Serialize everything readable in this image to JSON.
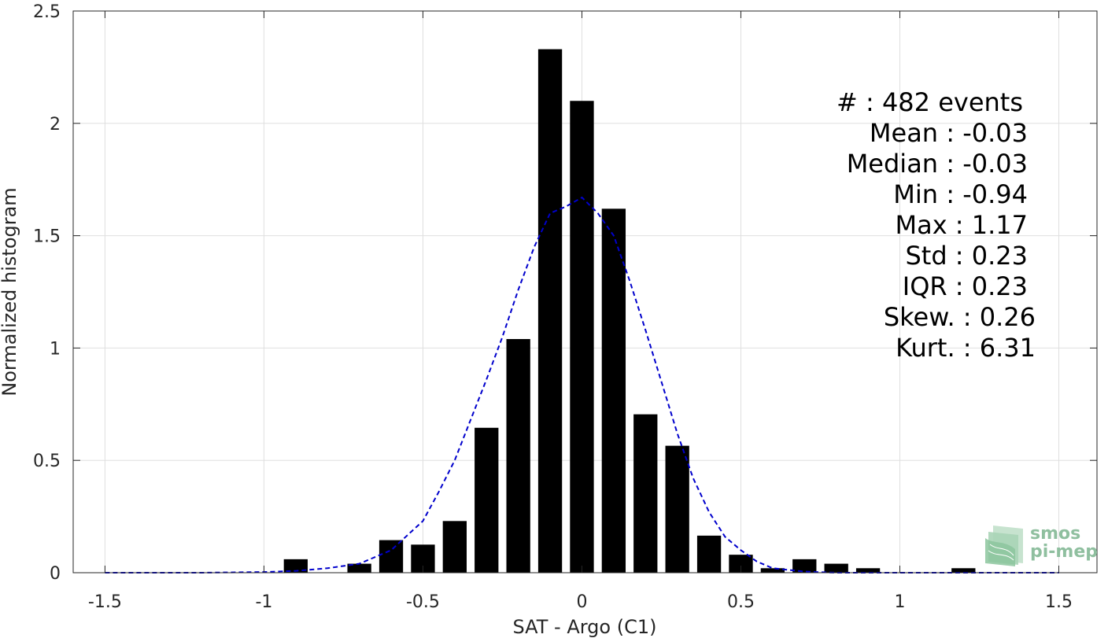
{
  "chart_data": {
    "type": "bar",
    "xlabel": "SAT - Argo (C1)",
    "ylabel": "Normalized histogram",
    "xlim": [
      -1.6,
      1.62
    ],
    "ylim": [
      0,
      2.5
    ],
    "xticks": [
      -1.5,
      -1,
      -0.5,
      0,
      0.5,
      1,
      1.5
    ],
    "xtick_labels": [
      "-1.5",
      "-1",
      "-0.5",
      "0",
      "0.5",
      "1",
      "1.5"
    ],
    "yticks": [
      0,
      0.5,
      1,
      1.5,
      2,
      2.5
    ],
    "ytick_labels": [
      "0",
      "0.5",
      "1",
      "1.5",
      "2",
      "2.5"
    ],
    "grid": true,
    "bar_width": 0.075,
    "bar_color": "#000000",
    "bars": [
      {
        "x": -0.9,
        "y": 0.06
      },
      {
        "x": -0.7,
        "y": 0.04
      },
      {
        "x": -0.6,
        "y": 0.145
      },
      {
        "x": -0.5,
        "y": 0.125
      },
      {
        "x": -0.4,
        "y": 0.23
      },
      {
        "x": -0.3,
        "y": 0.645
      },
      {
        "x": -0.2,
        "y": 1.04
      },
      {
        "x": -0.1,
        "y": 2.33
      },
      {
        "x": 0.0,
        "y": 2.1
      },
      {
        "x": 0.1,
        "y": 1.62
      },
      {
        "x": 0.2,
        "y": 0.705
      },
      {
        "x": 0.3,
        "y": 0.565
      },
      {
        "x": 0.4,
        "y": 0.165
      },
      {
        "x": 0.5,
        "y": 0.08
      },
      {
        "x": 0.6,
        "y": 0.02
      },
      {
        "x": 0.7,
        "y": 0.06
      },
      {
        "x": 0.8,
        "y": 0.04
      },
      {
        "x": 0.9,
        "y": 0.02
      },
      {
        "x": 1.2,
        "y": 0.02
      }
    ],
    "fit_curve": {
      "style": "dashed",
      "color": "#0000cc",
      "points": [
        [
          -1.5,
          0.0
        ],
        [
          -1.2,
          0.0
        ],
        [
          -1.0,
          0.003
        ],
        [
          -0.9,
          0.008
        ],
        [
          -0.8,
          0.02
        ],
        [
          -0.7,
          0.04
        ],
        [
          -0.6,
          0.1
        ],
        [
          -0.5,
          0.23
        ],
        [
          -0.45,
          0.36
        ],
        [
          -0.4,
          0.5
        ],
        [
          -0.35,
          0.68
        ],
        [
          -0.3,
          0.86
        ],
        [
          -0.25,
          1.05
        ],
        [
          -0.2,
          1.26
        ],
        [
          -0.15,
          1.45
        ],
        [
          -0.1,
          1.6
        ],
        [
          -0.05,
          1.63
        ],
        [
          0.0,
          1.67
        ],
        [
          0.05,
          1.6
        ],
        [
          0.1,
          1.5
        ],
        [
          0.15,
          1.3
        ],
        [
          0.2,
          1.08
        ],
        [
          0.25,
          0.85
        ],
        [
          0.3,
          0.62
        ],
        [
          0.35,
          0.42
        ],
        [
          0.4,
          0.27
        ],
        [
          0.45,
          0.16
        ],
        [
          0.5,
          0.1
        ],
        [
          0.55,
          0.05
        ],
        [
          0.6,
          0.02
        ],
        [
          0.7,
          0.005
        ],
        [
          0.8,
          0.0
        ],
        [
          1.0,
          0.0
        ],
        [
          1.5,
          0.0
        ]
      ]
    },
    "annotations": [
      "#  : 482 events",
      "Mean : -0.03",
      "Median : -0.03",
      "Min : -0.94",
      "Max : 1.17",
      "Std : 0.23",
      "IQR : 0.23",
      "Skew. : 0.26",
      "Kurt. : 6.31"
    ]
  },
  "logo": {
    "line1": "smos",
    "line2": "pi-mep"
  }
}
